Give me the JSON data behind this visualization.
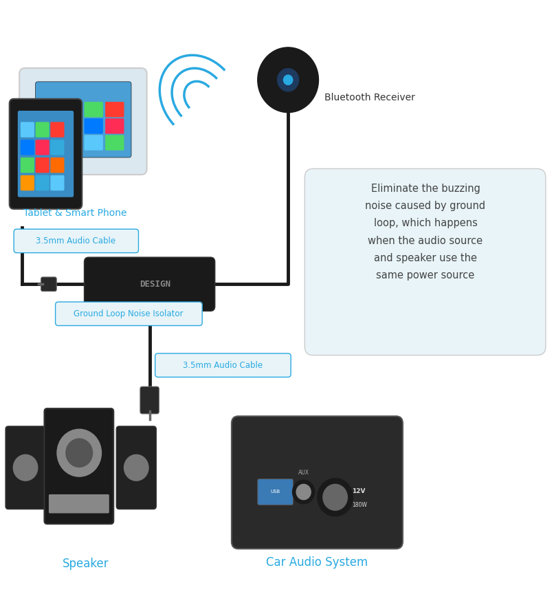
{
  "bg_color": "#ffffff",
  "labels": {
    "tablet": "Tablet & Smart Phone",
    "bluetooth": "Bluetooth Receiver",
    "cable_top": "3.5mm Audio Cable",
    "isolator": "Ground Loop Noise Isolator",
    "cable_bottom": "3.5mm Audio Cable",
    "speaker": "Speaker",
    "car": "Car Audio System",
    "description": "Eliminate the buzzing\nnoise caused by ground\nloop, which happens\nwhen the audio source\nand speaker use the\nsame power source"
  },
  "label_color": "#29a9e1",
  "text_color": "#333333",
  "desc_color": "#444444",
  "cable_color": "#1a1a1a",
  "desc_box_color": "#e8f4f8",
  "icon_colors": [
    "#ff9500",
    "#34aadc",
    "#5ac8fa",
    "#4cd964",
    "#ff3b30",
    "#ff6b00",
    "#007aff",
    "#ff2d55",
    "#34aadc",
    "#5ac8fa",
    "#4cd964",
    "#ff3b30",
    "#ff9500",
    "#34aadc",
    "#5ac8fa",
    "#4cd964"
  ]
}
